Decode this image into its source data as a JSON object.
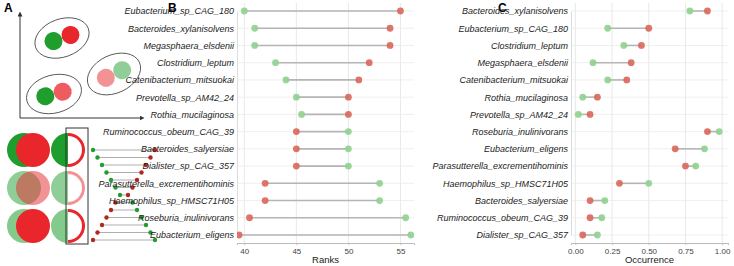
{
  "diagram": {
    "label": "A"
  },
  "chart_data": [
    {
      "type": "dumbbell",
      "title": "B",
      "xlabel": "Ranks",
      "orientation": "horizontal",
      "grid": true,
      "categories": [
        "Eubacterium_sp_CAG_180",
        "Bacteroides_xylanisolvens",
        "Megasphaera_elsdenii",
        "Clostridium_leptum",
        "Catenibacterium_mitsuokai",
        "Prevotella_sp_AM42_24",
        "Rothia_mucilaginosa",
        "Ruminococcus_obeum_CAG_39",
        "Bacteroides_salyersiae",
        "Dialister_sp_CAG_357",
        "Parasutterella_excrementihominis",
        "Haemophilus_sp_HMSC71H05",
        "Roseburia_inulinivorans",
        "Eubacterium_eligens"
      ],
      "series": [
        {
          "color": "#d9665b",
          "values": [
            55,
            54,
            54,
            52,
            51,
            50,
            50,
            45,
            45,
            45,
            42,
            42,
            40.5,
            39.5
          ]
        },
        {
          "color": "#8fd18f",
          "values": [
            40,
            41,
            41,
            43,
            44,
            45,
            45.5,
            50,
            50,
            50,
            53,
            53,
            55.5,
            56
          ]
        }
      ],
      "xlim": [
        39.3,
        56.3
      ],
      "xticks": [
        40,
        45,
        50,
        55
      ]
    },
    {
      "type": "dumbbell",
      "title": "C",
      "xlabel": "Occurrence",
      "orientation": "horizontal",
      "grid": true,
      "categories": [
        "Bacteroides_xylanisolvens",
        "Eubacterium_sp_CAG_180",
        "Clostridium_leptum",
        "Megasphaera_elsdenii",
        "Catenibacterium_mitsuokai",
        "Rothia_mucilaginosa",
        "Prevotella_sp_AM42_24",
        "Roseburia_inulinivorans",
        "Eubacterium_eligens",
        "Parasutterella_excrementihominis",
        "Haemophilus_sp_HMSC71H05",
        "Bacteroides_salyersiae",
        "Ruminococcus_obeum_CAG_39",
        "Dialister_sp_CAG_357"
      ],
      "series": [
        {
          "color": "#d9665b",
          "values": [
            0.9,
            0.5,
            0.45,
            0.38,
            0.35,
            0.15,
            0.1,
            0.9,
            0.68,
            0.75,
            0.3,
            0.1,
            0.1,
            0.05
          ]
        },
        {
          "color": "#8fd18f",
          "values": [
            0.78,
            0.22,
            0.33,
            0.12,
            0.22,
            0.05,
            0.02,
            0.98,
            0.88,
            0.82,
            0.5,
            0.2,
            0.18,
            0.15
          ]
        }
      ],
      "xlim": [
        -0.03,
        1.04
      ],
      "xticks": [
        {
          "value": 0,
          "label": "0.00"
        },
        {
          "value": 0.25,
          "label": "0.25"
        },
        {
          "value": 0.5,
          "label": "0.50"
        },
        {
          "value": 0.75,
          "label": "0.75"
        },
        {
          "value": 1,
          "label": "1.00"
        }
      ]
    }
  ]
}
